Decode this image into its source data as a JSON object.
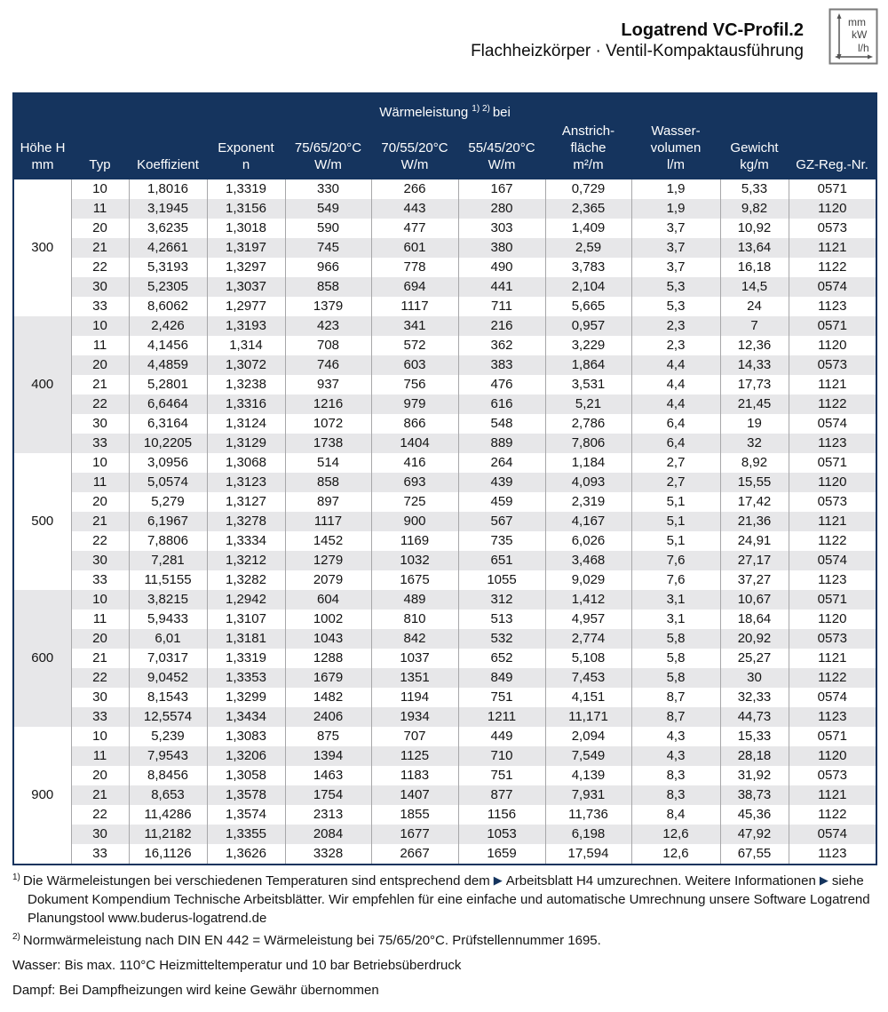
{
  "header": {
    "title": "Logatrend VC-Profil.2",
    "subtitle": "Flachheizkörper · Ventil-Kompaktausführung",
    "unit_icon": {
      "labels": [
        "mm",
        "kW",
        "l/h"
      ]
    }
  },
  "colors": {
    "header_navy": "#15345E",
    "row_alt_gray": "#E7E7E9",
    "column_separator": "#A7A7A9",
    "arrow_navy": "#15345E"
  },
  "table": {
    "heading": {
      "text": "Wärmeleistung",
      "sup": "1) 2)",
      "suffix": "bei"
    },
    "columns": [
      {
        "id": "hoehe",
        "lines": [
          "Höhe H",
          "mm"
        ]
      },
      {
        "id": "typ",
        "lines": [
          "Typ"
        ]
      },
      {
        "id": "koeffizient",
        "lines": [
          "Koeffizient"
        ]
      },
      {
        "id": "exponent",
        "lines": [
          "Exponent",
          "n"
        ]
      },
      {
        "id": "w75-65-20",
        "lines": [
          "75/65/20°C",
          "W/m"
        ]
      },
      {
        "id": "w70-55-20",
        "lines": [
          "70/55/20°C",
          "W/m"
        ]
      },
      {
        "id": "w55-45-20",
        "lines": [
          "55/45/20°C",
          "W/m"
        ]
      },
      {
        "id": "anstrichflaeche",
        "lines": [
          "Anstrich-",
          "fläche",
          "m²/m"
        ]
      },
      {
        "id": "wasservolumen",
        "lines": [
          "Wasser-",
          "volumen",
          "l/m"
        ]
      },
      {
        "id": "gewicht",
        "lines": [
          "Gewicht",
          "kg/m"
        ]
      },
      {
        "id": "gz-reg-nr",
        "lines": [
          "GZ-Reg.-Nr."
        ]
      }
    ],
    "groups": [
      {
        "height": "300",
        "rows": [
          [
            "10",
            "1,8016",
            "1,3319",
            "330",
            "266",
            "167",
            "0,729",
            "1,9",
            "5,33",
            "0571"
          ],
          [
            "11",
            "3,1945",
            "1,3156",
            "549",
            "443",
            "280",
            "2,365",
            "1,9",
            "9,82",
            "1120"
          ],
          [
            "20",
            "3,6235",
            "1,3018",
            "590",
            "477",
            "303",
            "1,409",
            "3,7",
            "10,92",
            "0573"
          ],
          [
            "21",
            "4,2661",
            "1,3197",
            "745",
            "601",
            "380",
            "2,59",
            "3,7",
            "13,64",
            "1121"
          ],
          [
            "22",
            "5,3193",
            "1,3297",
            "966",
            "778",
            "490",
            "3,783",
            "3,7",
            "16,18",
            "1122"
          ],
          [
            "30",
            "5,2305",
            "1,3037",
            "858",
            "694",
            "441",
            "2,104",
            "5,3",
            "14,5",
            "0574"
          ],
          [
            "33",
            "8,6062",
            "1,2977",
            "1379",
            "1117",
            "711",
            "5,665",
            "5,3",
            "24",
            "1123"
          ]
        ]
      },
      {
        "height": "400",
        "rows": [
          [
            "10",
            "2,426",
            "1,3193",
            "423",
            "341",
            "216",
            "0,957",
            "2,3",
            "7",
            "0571"
          ],
          [
            "11",
            "4,1456",
            "1,314",
            "708",
            "572",
            "362",
            "3,229",
            "2,3",
            "12,36",
            "1120"
          ],
          [
            "20",
            "4,4859",
            "1,3072",
            "746",
            "603",
            "383",
            "1,864",
            "4,4",
            "14,33",
            "0573"
          ],
          [
            "21",
            "5,2801",
            "1,3238",
            "937",
            "756",
            "476",
            "3,531",
            "4,4",
            "17,73",
            "1121"
          ],
          [
            "22",
            "6,6464",
            "1,3316",
            "1216",
            "979",
            "616",
            "5,21",
            "4,4",
            "21,45",
            "1122"
          ],
          [
            "30",
            "6,3164",
            "1,3124",
            "1072",
            "866",
            "548",
            "2,786",
            "6,4",
            "19",
            "0574"
          ],
          [
            "33",
            "10,2205",
            "1,3129",
            "1738",
            "1404",
            "889",
            "7,806",
            "6,4",
            "32",
            "1123"
          ]
        ]
      },
      {
        "height": "500",
        "rows": [
          [
            "10",
            "3,0956",
            "1,3068",
            "514",
            "416",
            "264",
            "1,184",
            "2,7",
            "8,92",
            "0571"
          ],
          [
            "11",
            "5,0574",
            "1,3123",
            "858",
            "693",
            "439",
            "4,093",
            "2,7",
            "15,55",
            "1120"
          ],
          [
            "20",
            "5,279",
            "1,3127",
            "897",
            "725",
            "459",
            "2,319",
            "5,1",
            "17,42",
            "0573"
          ],
          [
            "21",
            "6,1967",
            "1,3278",
            "1117",
            "900",
            "567",
            "4,167",
            "5,1",
            "21,36",
            "1121"
          ],
          [
            "22",
            "7,8806",
            "1,3334",
            "1452",
            "1169",
            "735",
            "6,026",
            "5,1",
            "24,91",
            "1122"
          ],
          [
            "30",
            "7,281",
            "1,3212",
            "1279",
            "1032",
            "651",
            "3,468",
            "7,6",
            "27,17",
            "0574"
          ],
          [
            "33",
            "11,5155",
            "1,3282",
            "2079",
            "1675",
            "1055",
            "9,029",
            "7,6",
            "37,27",
            "1123"
          ]
        ]
      },
      {
        "height": "600",
        "rows": [
          [
            "10",
            "3,8215",
            "1,2942",
            "604",
            "489",
            "312",
            "1,412",
            "3,1",
            "10,67",
            "0571"
          ],
          [
            "11",
            "5,9433",
            "1,3107",
            "1002",
            "810",
            "513",
            "4,957",
            "3,1",
            "18,64",
            "1120"
          ],
          [
            "20",
            "6,01",
            "1,3181",
            "1043",
            "842",
            "532",
            "2,774",
            "5,8",
            "20,92",
            "0573"
          ],
          [
            "21",
            "7,0317",
            "1,3319",
            "1288",
            "1037",
            "652",
            "5,108",
            "5,8",
            "25,27",
            "1121"
          ],
          [
            "22",
            "9,0452",
            "1,3353",
            "1679",
            "1351",
            "849",
            "7,453",
            "5,8",
            "30",
            "1122"
          ],
          [
            "30",
            "8,1543",
            "1,3299",
            "1482",
            "1194",
            "751",
            "4,151",
            "8,7",
            "32,33",
            "0574"
          ],
          [
            "33",
            "12,5574",
            "1,3434",
            "2406",
            "1934",
            "1211",
            "11,171",
            "8,7",
            "44,73",
            "1123"
          ]
        ]
      },
      {
        "height": "900",
        "rows": [
          [
            "10",
            "5,239",
            "1,3083",
            "875",
            "707",
            "449",
            "2,094",
            "4,3",
            "15,33",
            "0571"
          ],
          [
            "11",
            "7,9543",
            "1,3206",
            "1394",
            "1125",
            "710",
            "7,549",
            "4,3",
            "28,18",
            "1120"
          ],
          [
            "20",
            "8,8456",
            "1,3058",
            "1463",
            "1183",
            "751",
            "4,139",
            "8,3",
            "31,92",
            "0573"
          ],
          [
            "21",
            "8,653",
            "1,3578",
            "1754",
            "1407",
            "877",
            "7,931",
            "8,3",
            "38,73",
            "1121"
          ],
          [
            "22",
            "11,4286",
            "1,3574",
            "2313",
            "1855",
            "1156",
            "11,736",
            "8,4",
            "45,36",
            "1122"
          ],
          [
            "30",
            "11,2182",
            "1,3355",
            "2084",
            "1677",
            "1053",
            "6,198",
            "12,6",
            "47,92",
            "0574"
          ],
          [
            "33",
            "16,1126",
            "1,3626",
            "3328",
            "2667",
            "1659",
            "17,594",
            "12,6",
            "67,55",
            "1123"
          ]
        ]
      }
    ]
  },
  "footnotes": [
    {
      "sup": "1)",
      "parts": [
        "Die Wärmeleistungen bei verschiedenen Temperaturen sind entsprechend dem",
        "▶",
        "Arbeitsblatt H4 umzurechnen. Weitere Informationen",
        "▶",
        "siehe Dokument Kompendium Technische Arbeitsblätter. Wir empfehlen für eine einfache und automatische Umrechnung unsere Software Logatrend Planungstool www.buderus-logatrend.de"
      ]
    },
    {
      "sup": "2)",
      "text": "Normwärmeleistung nach DIN EN 442 = Wärmeleistung bei 75/65/20°C. Prüfstellennummer 1695."
    }
  ],
  "notes": [
    "Wasser: Bis max. 110°C Heizmitteltemperatur und 10 bar Betriebsüberdruck",
    "Dampf: Bei Dampfheizungen wird keine Gewähr übernommen"
  ]
}
